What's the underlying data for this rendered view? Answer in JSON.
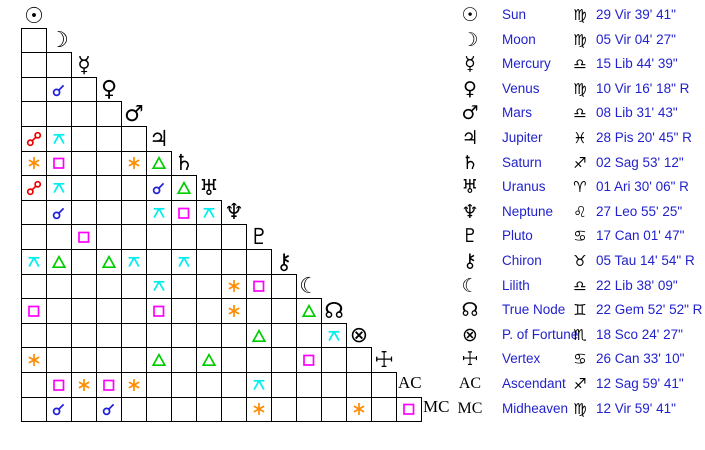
{
  "colors": {
    "text_blue": "#2222cc",
    "glyph_black": "#000000",
    "grid_line": "#000000",
    "background": "#ffffff"
  },
  "aspect_styles": {
    "conjunction": {
      "label": "conjunction",
      "color": "#2222dd"
    },
    "opposition": {
      "label": "opposition",
      "color": "#ee0000"
    },
    "sextile": {
      "label": "sextile",
      "color": "#ff8c00"
    },
    "square": {
      "label": "square",
      "color": "#ff00ff"
    },
    "trine": {
      "label": "trine",
      "color": "#00cc00"
    },
    "quincunx": {
      "label": "quincunx",
      "color": "#00eeee"
    }
  },
  "bodies": [
    {
      "key": "sun",
      "glyph": "☉",
      "name": "Sun",
      "sign": "♍",
      "position": "29 Vir 39' 41\""
    },
    {
      "key": "moon",
      "glyph": "☽",
      "name": "Moon",
      "sign": "♍",
      "position": "05 Vir 04' 27\""
    },
    {
      "key": "mercury",
      "glyph": "☿",
      "name": "Mercury",
      "sign": "♎",
      "position": "15 Lib 44' 39\""
    },
    {
      "key": "venus",
      "glyph": "♀",
      "name": "Venus",
      "sign": "♍",
      "position": "10 Vir 16' 18\" R"
    },
    {
      "key": "mars",
      "glyph": "♂",
      "name": "Mars",
      "sign": "♎",
      "position": "08 Lib 31' 43\""
    },
    {
      "key": "jupiter",
      "glyph": "♃",
      "name": "Jupiter",
      "sign": "♓",
      "position": "28 Pis 20' 45\" R"
    },
    {
      "key": "saturn",
      "glyph": "♄",
      "name": "Saturn",
      "sign": "♐",
      "position": "02 Sag 53' 12\""
    },
    {
      "key": "uranus",
      "glyph": "♅",
      "name": "Uranus",
      "sign": "♈",
      "position": "01 Ari 30' 06\" R"
    },
    {
      "key": "neptune",
      "glyph": "♆",
      "name": "Neptune",
      "sign": "♌",
      "position": "27 Leo 55' 25\""
    },
    {
      "key": "pluto",
      "glyph": "♇",
      "name": "Pluto",
      "sign": "♋",
      "position": "17 Can 01' 47\""
    },
    {
      "key": "chiron",
      "glyph": "⚷",
      "name": "Chiron",
      "sign": "♉",
      "position": "05 Tau 14' 54\" R"
    },
    {
      "key": "lilith",
      "glyph": "☾",
      "name": "Lilith",
      "sign": "♎",
      "position": "22 Lib 38' 09\"",
      "bold": true
    },
    {
      "key": "true-node",
      "glyph": "☊",
      "name": "True Node",
      "sign": "♊",
      "position": "22 Gem 52' 52\" R"
    },
    {
      "key": "fortune",
      "glyph": "⊗",
      "name": "P. of Fortune",
      "sign": "♏",
      "position": "18 Sco 24' 27\""
    },
    {
      "key": "vertex",
      "glyph": "☩",
      "name": "Vertex",
      "sign": "♋",
      "position": "26 Can 33' 10\""
    },
    {
      "key": "ascendant",
      "glyph": "AC",
      "name": "Ascendant",
      "sign": "♐",
      "position": "12 Sag 59' 41\"",
      "serif": true
    },
    {
      "key": "midheaven",
      "glyph": "MC",
      "name": "Midheaven",
      "sign": "♍",
      "position": "12 Vir 59' 41\"",
      "serif": true
    }
  ],
  "aspects": [
    {
      "row": 4,
      "col": 2,
      "type": "conjunction"
    },
    {
      "row": 6,
      "col": 1,
      "type": "opposition"
    },
    {
      "row": 6,
      "col": 2,
      "type": "quincunx"
    },
    {
      "row": 7,
      "col": 1,
      "type": "sextile"
    },
    {
      "row": 7,
      "col": 2,
      "type": "square"
    },
    {
      "row": 7,
      "col": 5,
      "type": "sextile"
    },
    {
      "row": 7,
      "col": 6,
      "type": "trine"
    },
    {
      "row": 8,
      "col": 1,
      "type": "opposition"
    },
    {
      "row": 8,
      "col": 2,
      "type": "quincunx"
    },
    {
      "row": 8,
      "col": 6,
      "type": "conjunction"
    },
    {
      "row": 8,
      "col": 7,
      "type": "trine"
    },
    {
      "row": 9,
      "col": 2,
      "type": "conjunction"
    },
    {
      "row": 9,
      "col": 6,
      "type": "quincunx"
    },
    {
      "row": 9,
      "col": 7,
      "type": "square"
    },
    {
      "row": 9,
      "col": 8,
      "type": "quincunx"
    },
    {
      "row": 10,
      "col": 3,
      "type": "square"
    },
    {
      "row": 11,
      "col": 1,
      "type": "quincunx"
    },
    {
      "row": 11,
      "col": 2,
      "type": "trine"
    },
    {
      "row": 11,
      "col": 4,
      "type": "trine"
    },
    {
      "row": 11,
      "col": 5,
      "type": "quincunx"
    },
    {
      "row": 11,
      "col": 7,
      "type": "quincunx"
    },
    {
      "row": 12,
      "col": 6,
      "type": "quincunx"
    },
    {
      "row": 12,
      "col": 9,
      "type": "sextile"
    },
    {
      "row": 12,
      "col": 10,
      "type": "square"
    },
    {
      "row": 13,
      "col": 1,
      "type": "square"
    },
    {
      "row": 13,
      "col": 6,
      "type": "square"
    },
    {
      "row": 13,
      "col": 9,
      "type": "sextile"
    },
    {
      "row": 13,
      "col": 12,
      "type": "trine"
    },
    {
      "row": 14,
      "col": 10,
      "type": "trine"
    },
    {
      "row": 14,
      "col": 13,
      "type": "quincunx"
    },
    {
      "row": 15,
      "col": 1,
      "type": "sextile"
    },
    {
      "row": 15,
      "col": 6,
      "type": "trine"
    },
    {
      "row": 15,
      "col": 8,
      "type": "trine"
    },
    {
      "row": 15,
      "col": 12,
      "type": "square"
    },
    {
      "row": 16,
      "col": 2,
      "type": "square"
    },
    {
      "row": 16,
      "col": 3,
      "type": "sextile"
    },
    {
      "row": 16,
      "col": 4,
      "type": "square"
    },
    {
      "row": 16,
      "col": 5,
      "type": "sextile"
    },
    {
      "row": 16,
      "col": 10,
      "type": "quincunx"
    },
    {
      "row": 17,
      "col": 2,
      "type": "conjunction"
    },
    {
      "row": 17,
      "col": 4,
      "type": "conjunction"
    },
    {
      "row": 17,
      "col": 10,
      "type": "sextile"
    },
    {
      "row": 17,
      "col": 14,
      "type": "sextile"
    },
    {
      "row": 17,
      "col": 16,
      "type": "square"
    }
  ]
}
